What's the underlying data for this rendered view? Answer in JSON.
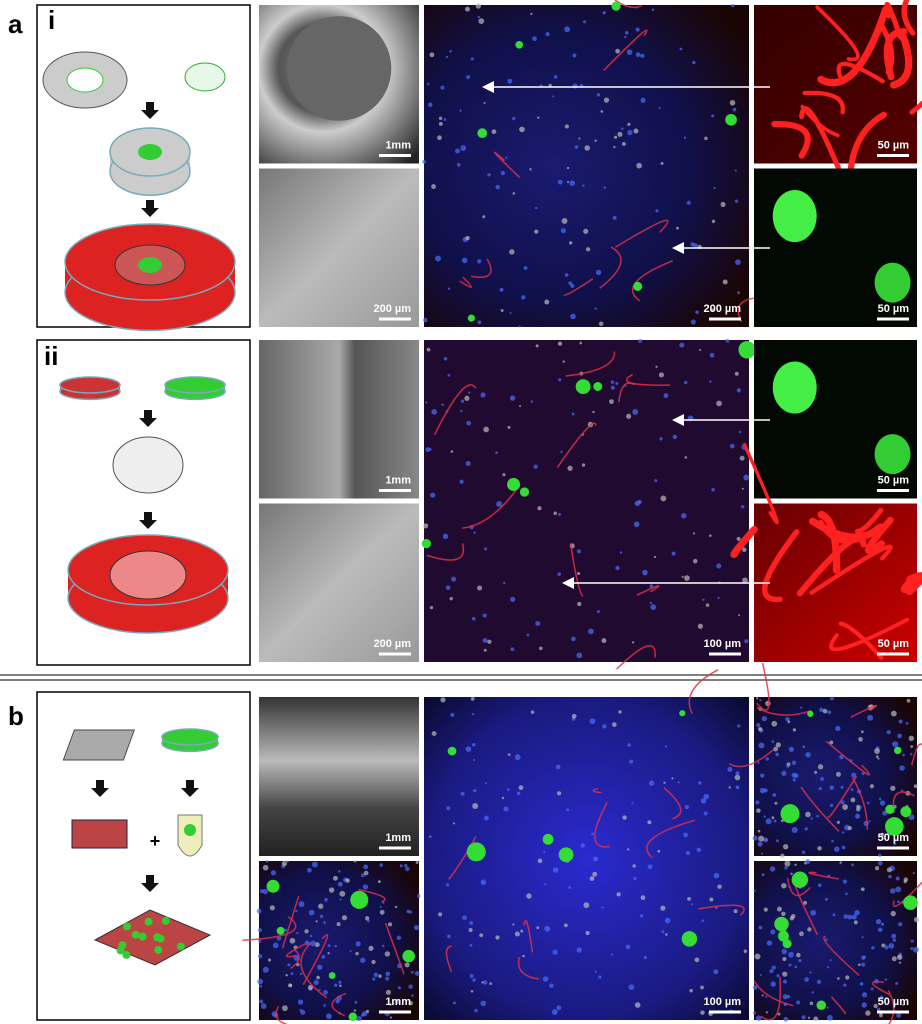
{
  "panel_a": {
    "label": "a",
    "row_i": {
      "label": "i",
      "scale_bars": [
        "1mm",
        "200 µm",
        "200 µm",
        "50 µm",
        "50 µm"
      ]
    },
    "row_ii": {
      "label": "ii",
      "scale_bars": [
        "1mm",
        "200 µm",
        "100 µm",
        "50 µm",
        "50 µm"
      ]
    }
  },
  "panel_b": {
    "label": "b",
    "plus": "+",
    "scale_bars": [
      "1mm",
      "1mm",
      "100 µm",
      "50 µm",
      "50 µm"
    ]
  }
}
